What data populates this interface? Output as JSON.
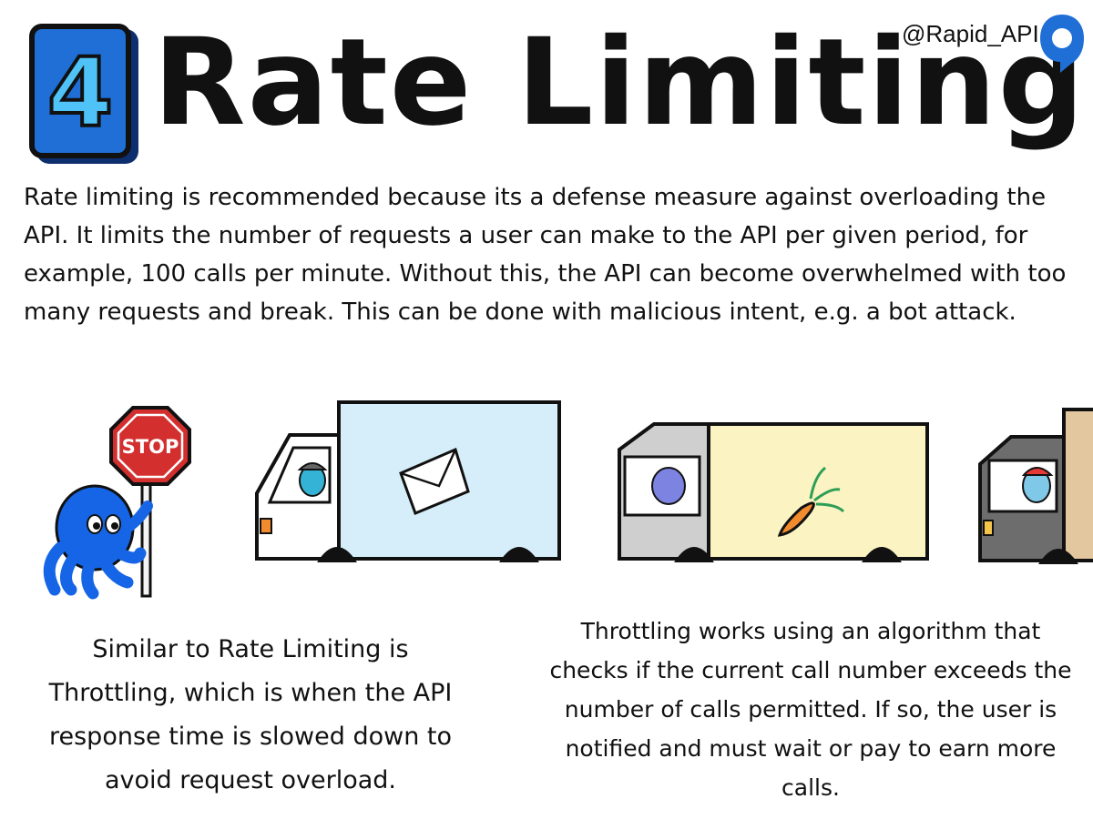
{
  "header": {
    "number": "4",
    "title": "Rate Limiting",
    "handle": "@Rapid_API",
    "brand_color": "#1f6fd6"
  },
  "intro": "Rate limiting is recommended because its a defense measure against overloading the API. It limits the number of requests a user can make to the API per given period, for example, 100 calls per minute. Without this, the API can become overwhelmed with too many requests and break. This can be done with malicious intent, e.g. a bot attack.",
  "illustration": {
    "stop_sign_text": "STOP",
    "colors": {
      "octopus": "#1565e6",
      "stop_sign": "#d32f2f",
      "truck_1_cargo": "#d6eef9",
      "truck_2_cargo": "#fbf4c2",
      "truck_cab_grey": "#cfcfcf",
      "truck_3_dark": "#6d6d6d",
      "carrot": "#f28a2e"
    }
  },
  "captions": {
    "left": "Similar to Rate Limiting is Throttling, which is when the API response time is slowed down to avoid request overload.",
    "right": "Throttling works using an algorithm that checks if the current call number exceeds the number of calls permitted. If so, the user is notified and must wait or pay to earn more calls."
  }
}
